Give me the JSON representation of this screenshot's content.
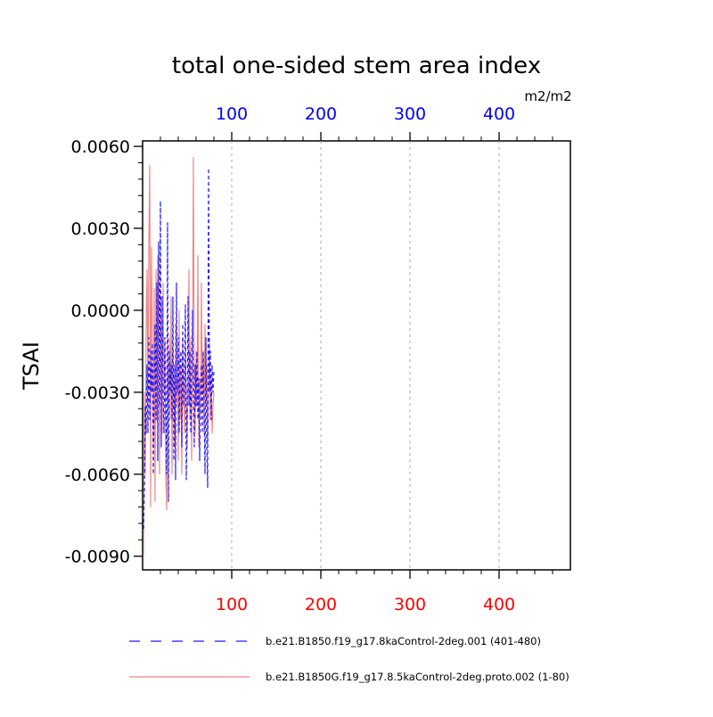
{
  "chart_data": {
    "type": "line",
    "title": "total one-sided stem area index",
    "units": "m2/m2",
    "ylabel": "TSAI",
    "xlabel": "",
    "xlim": [
      0,
      480
    ],
    "ylim": [
      -0.0095,
      0.0062
    ],
    "x_ticks": [
      100,
      200,
      300,
      400
    ],
    "x_tick_labels": [
      "100",
      "200",
      "300",
      "400"
    ],
    "y_ticks": [
      0.006,
      0.003,
      0.0,
      -0.003,
      -0.006,
      -0.009
    ],
    "y_tick_labels": [
      "0.0060",
      "0.0030",
      "0.0000",
      "-0.0030",
      "-0.0060",
      "-0.0090"
    ],
    "grid": "vertical-dashed",
    "colors": {
      "series_blue": "#1a1aff",
      "series_red": "#f08080",
      "top_ticks": "#0000ff",
      "bottom_ticks": "#ff0000"
    },
    "series": [
      {
        "name": "b.e21.B1850.f19_g17.8kaControl-2deg.001 (401-480)",
        "style": "dashed",
        "x": [
          1,
          2,
          3,
          4,
          5,
          6,
          7,
          8,
          9,
          10,
          11,
          12,
          13,
          14,
          15,
          16,
          17,
          18,
          19,
          20,
          21,
          22,
          23,
          24,
          25,
          26,
          27,
          28,
          29,
          30,
          31,
          32,
          33,
          34,
          35,
          36,
          37,
          38,
          39,
          40,
          41,
          42,
          43,
          44,
          45,
          46,
          47,
          48,
          49,
          50,
          51,
          52,
          53,
          54,
          55,
          56,
          57,
          58,
          59,
          60,
          61,
          62,
          63,
          64,
          65,
          66,
          67,
          68,
          69,
          70,
          71,
          72,
          73,
          74,
          75,
          76,
          77,
          78,
          79,
          80
        ],
        "values": [
          -0.008,
          -0.0065,
          -0.0035,
          -0.0045,
          -0.002,
          -0.0045,
          -0.001,
          -0.004,
          -0.0015,
          -0.003,
          -0.0012,
          -0.006,
          -0.003,
          -0.0005,
          -0.004,
          0.001,
          -0.0055,
          0.0025,
          -0.0035,
          0.004,
          -0.005,
          0.0005,
          -0.003,
          -0.0045,
          -0.001,
          -0.0035,
          -0.006,
          0.0032,
          -0.007,
          -0.0015,
          -0.003,
          -0.002,
          -0.004,
          0.0005,
          -0.0055,
          -0.002,
          -0.0062,
          0.001,
          -0.003,
          -0.001,
          -0.0045,
          -0.002,
          -0.0015,
          -0.005,
          -0.0005,
          -0.0035,
          -0.0025,
          0.0002,
          -0.0062,
          -0.004,
          0.0005,
          -0.0035,
          -0.0015,
          -0.0045,
          -0.0025,
          0.0,
          -0.003,
          -0.005,
          -0.002,
          -0.0035,
          -0.0015,
          -0.004,
          -0.0025,
          -0.0055,
          -0.003,
          -0.002,
          -0.0045,
          -0.0015,
          -0.0035,
          -0.006,
          -0.001,
          -0.005,
          -0.0065,
          0.0052,
          -0.003,
          -0.0015,
          -0.004,
          -0.002,
          -0.003,
          -0.0022
        ]
      },
      {
        "name": "b.e21.B1850G.f19_g17.8.5kaControl-2deg.proto.002 (1-80)",
        "style": "solid",
        "x": [
          1,
          2,
          3,
          4,
          5,
          6,
          7,
          8,
          9,
          10,
          11,
          12,
          13,
          14,
          15,
          16,
          17,
          18,
          19,
          20,
          21,
          22,
          23,
          24,
          25,
          26,
          27,
          28,
          29,
          30,
          31,
          32,
          33,
          34,
          35,
          36,
          37,
          38,
          39,
          40,
          41,
          42,
          43,
          44,
          45,
          46,
          47,
          48,
          49,
          50,
          51,
          52,
          53,
          54,
          55,
          56,
          57,
          58,
          59,
          60,
          61,
          62,
          63,
          64,
          65,
          66,
          67,
          68,
          69,
          70,
          71,
          72,
          73,
          74,
          75,
          76,
          77,
          78,
          79,
          80
        ],
        "values": [
          -0.009,
          -0.003,
          -0.006,
          -0.0005,
          0.0015,
          -0.0035,
          0.0025,
          0.0053,
          -0.0072,
          0.0023,
          -0.001,
          -0.005,
          0.0008,
          -0.007,
          0.0015,
          -0.004,
          0.002,
          -0.0015,
          -0.006,
          0.0005,
          -0.0025,
          -0.0045,
          0.001,
          -0.003,
          -0.001,
          -0.006,
          -0.0073,
          -0.002,
          -0.0035,
          -0.001,
          -0.004,
          0.0005,
          -0.006,
          -0.0015,
          -0.003,
          -0.005,
          -0.0005,
          -0.0035,
          -0.0025,
          -0.0055,
          0.0,
          -0.004,
          -0.002,
          -0.006,
          -0.001,
          -0.003,
          -0.0045,
          -0.0015,
          -0.0035,
          -0.005,
          -0.002,
          0.0015,
          -0.004,
          -0.001,
          -0.0055,
          -0.0025,
          0.0056,
          -0.003,
          -0.0045,
          -0.0015,
          -0.0035,
          0.002,
          -0.005,
          -0.0025,
          -0.004,
          0.001,
          -0.003,
          -0.0015,
          -0.0045,
          -0.0005,
          -0.0035,
          -0.002,
          -0.005,
          -0.003,
          -0.001,
          -0.004,
          -0.0025,
          -0.0045,
          -0.0035,
          -0.003
        ]
      }
    ]
  }
}
